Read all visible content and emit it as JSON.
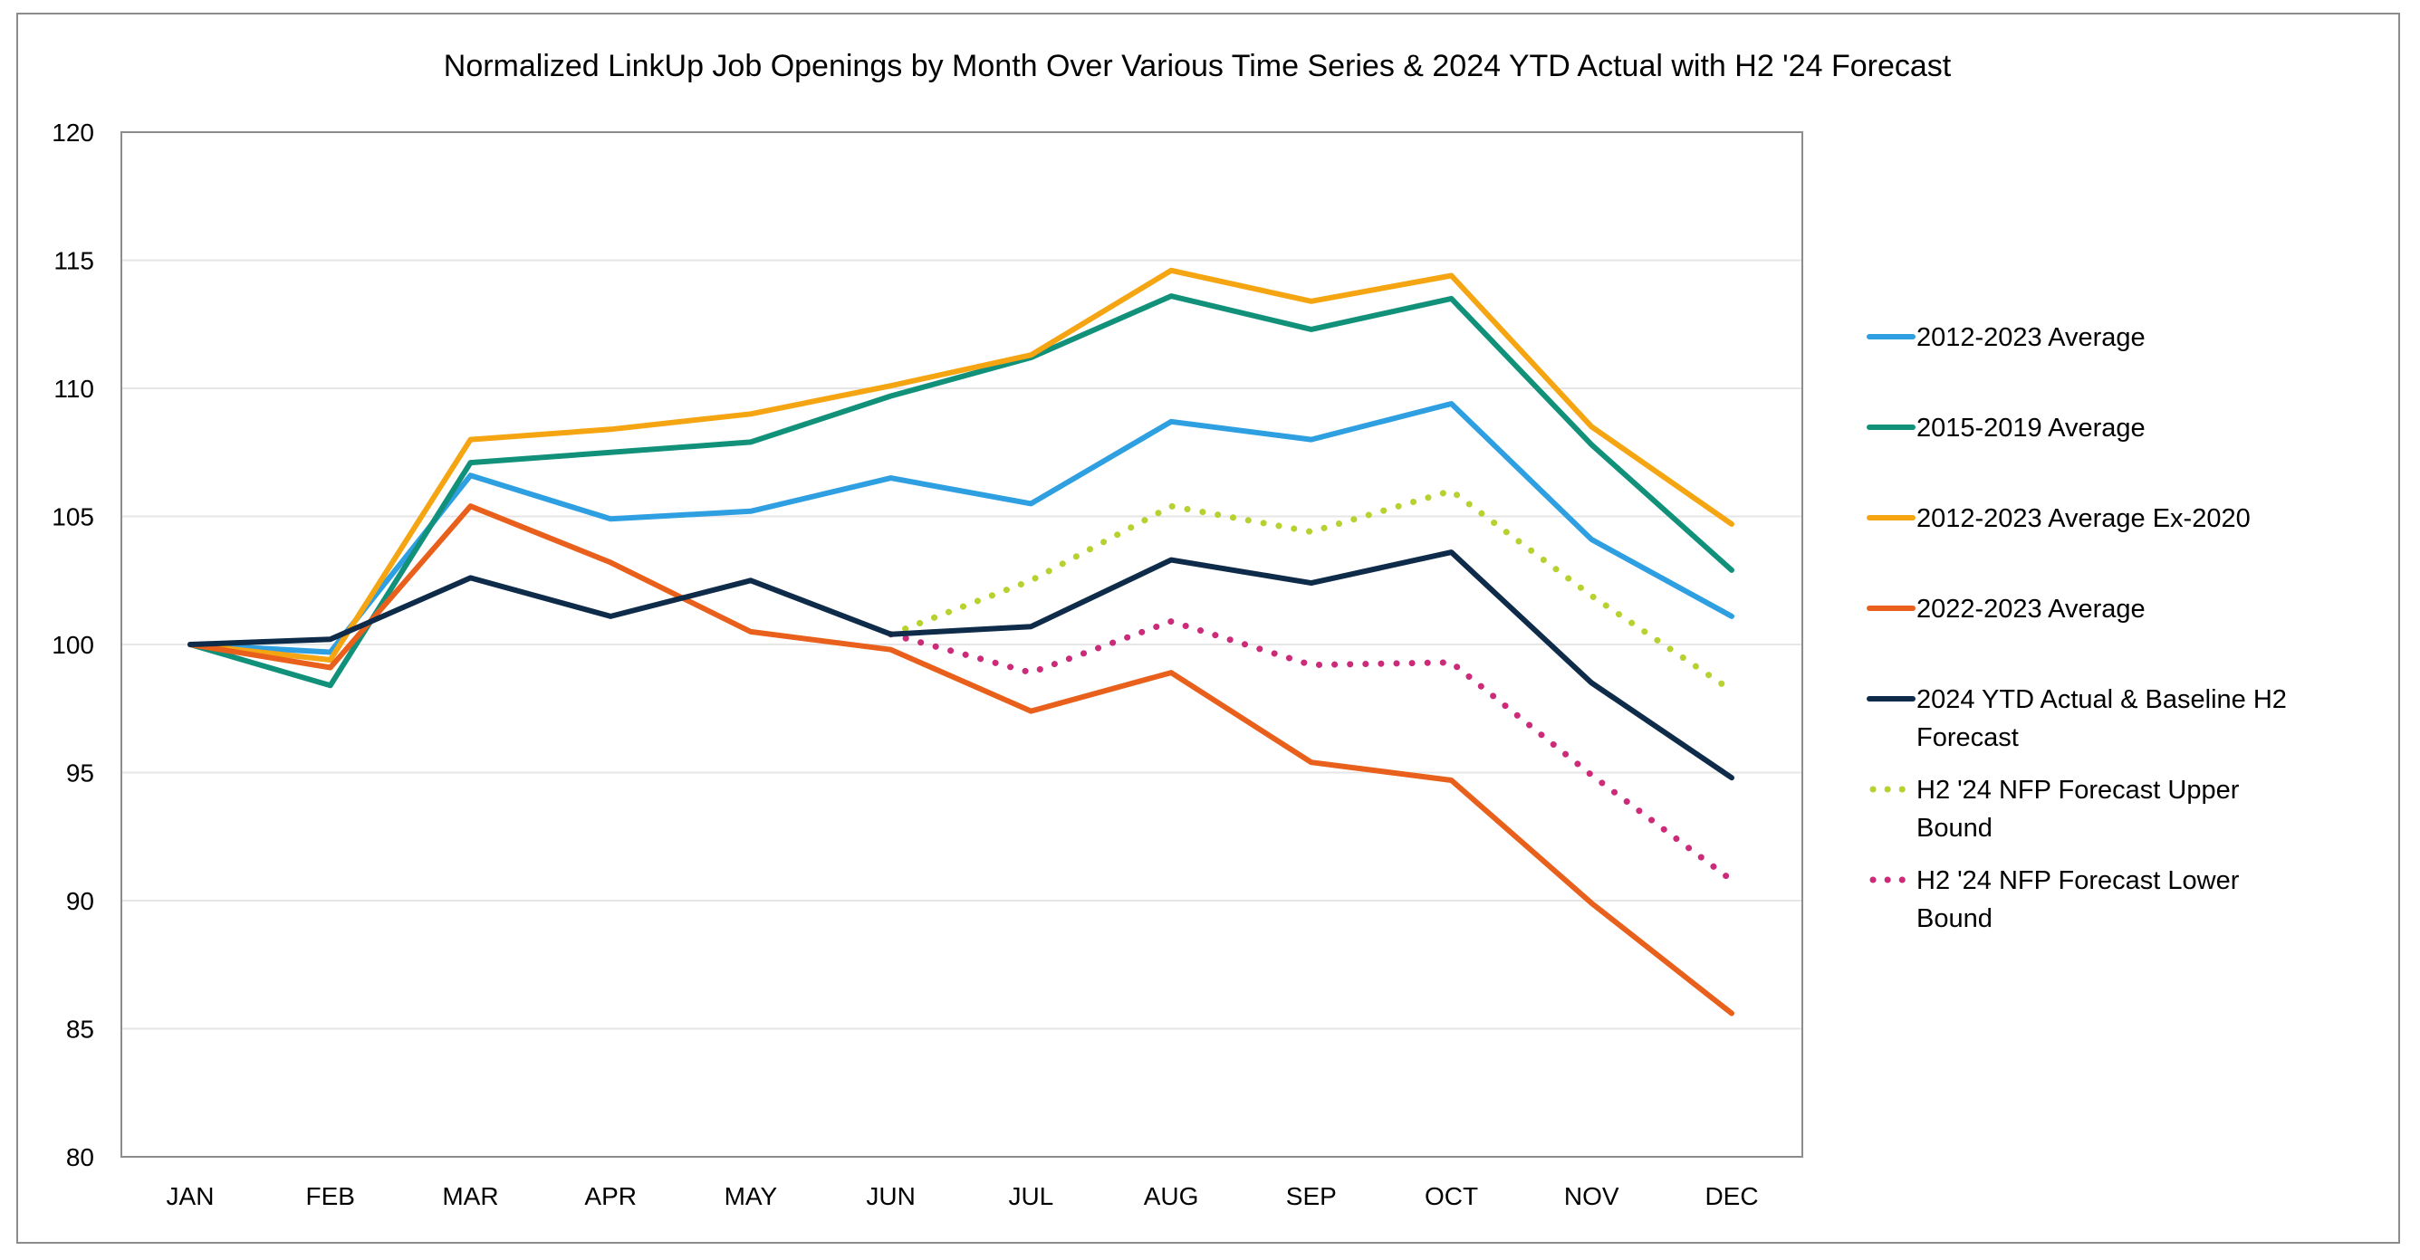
{
  "chart_data": {
    "type": "line",
    "title": "Normalized LinkUp Job Openings by Month Over Various Time Series & 2024 YTD Actual with H2 '24 Forecast",
    "xlabel": "",
    "ylabel": "",
    "categories": [
      "JAN",
      "FEB",
      "MAR",
      "APR",
      "MAY",
      "JUN",
      "JUL",
      "AUG",
      "SEP",
      "OCT",
      "NOV",
      "DEC"
    ],
    "ylim": [
      80,
      120
    ],
    "yticks": [
      "120",
      "115",
      "110",
      "105",
      "100",
      "95",
      "90",
      "85",
      "80"
    ],
    "grid": true,
    "legend_position": "right",
    "series": [
      {
        "name": "2012-2023 Average",
        "color": "#2E9FE0",
        "style": "solid",
        "values": [
          100,
          99.7,
          106.6,
          104.9,
          105.2,
          106.5,
          105.5,
          108.7,
          108.0,
          109.4,
          104.1,
          101.1
        ]
      },
      {
        "name": "2015-2019 Average",
        "color": "#12917A",
        "style": "solid",
        "values": [
          100,
          98.4,
          107.1,
          107.5,
          107.9,
          109.7,
          111.2,
          113.6,
          112.3,
          113.5,
          107.8,
          102.9
        ]
      },
      {
        "name": "2012-2023 Average Ex-2020",
        "color": "#F5A511",
        "style": "solid",
        "values": [
          100,
          99.4,
          108.0,
          108.4,
          109.0,
          110.1,
          111.3,
          114.6,
          113.4,
          114.4,
          108.5,
          104.7
        ]
      },
      {
        "name": "2022-2023 Average",
        "color": "#E8601C",
        "style": "solid",
        "values": [
          100,
          99.1,
          105.4,
          103.2,
          100.5,
          99.8,
          97.4,
          98.9,
          95.4,
          94.7,
          89.9,
          85.6
        ]
      },
      {
        "name": "2024 YTD Actual & Baseline H2 Forecast",
        "color": "#0F2B4A",
        "style": "solid",
        "values": [
          100,
          100.2,
          102.6,
          101.1,
          102.5,
          100.4,
          100.7,
          103.3,
          102.4,
          103.6,
          98.5,
          94.8
        ]
      },
      {
        "name": "H2 '24 NFP Forecast Upper Bound",
        "color": "#B6D230",
        "style": "dotted",
        "values": [
          null,
          null,
          null,
          null,
          null,
          100.4,
          102.5,
          105.4,
          104.4,
          106.0,
          101.9,
          98.2
        ]
      },
      {
        "name": "H2 '24 NFP Forecast Lower Bound",
        "color": "#CC2B79",
        "style": "dotted",
        "values": [
          null,
          null,
          null,
          null,
          null,
          100.4,
          98.9,
          100.9,
          99.2,
          99.3,
          94.9,
          90.8
        ]
      }
    ]
  }
}
